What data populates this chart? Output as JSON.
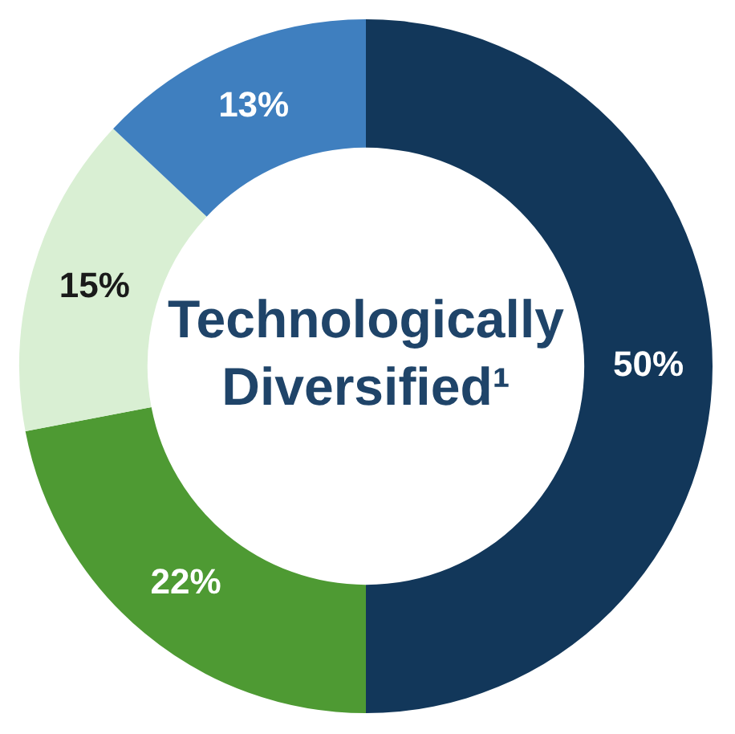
{
  "chart_data": {
    "type": "donut",
    "title": "Technologically Diversified¹",
    "categories": [
      null,
      null,
      null,
      null
    ],
    "values": [
      50,
      22,
      15,
      13
    ],
    "colors": [
      "#12375a",
      "#4e9a33",
      "#d9efd3",
      "#3f7fbf"
    ],
    "value_labels": [
      "50%",
      "22%",
      "15%",
      "13%"
    ],
    "legend": false
  }
}
